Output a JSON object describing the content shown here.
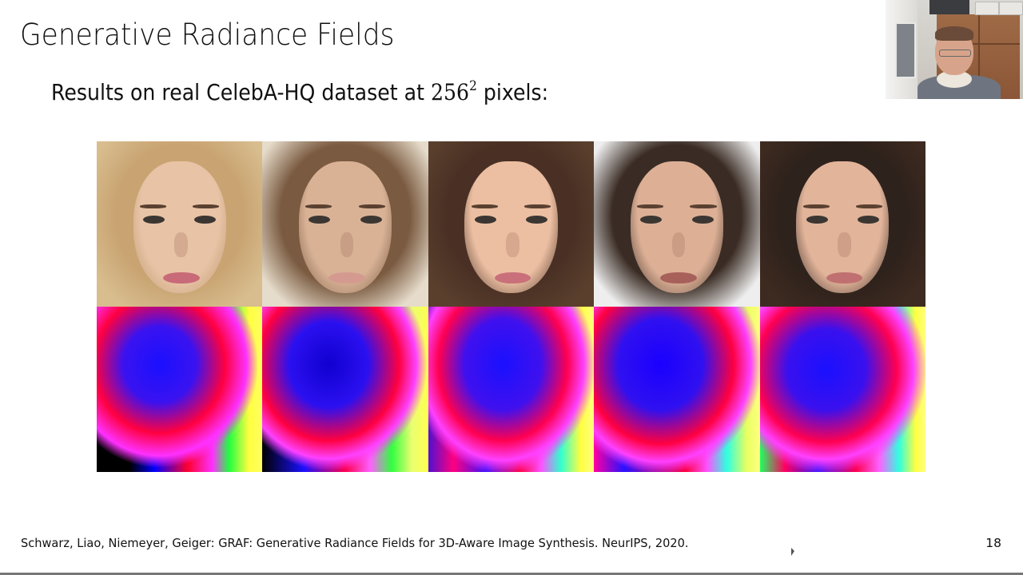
{
  "slide": {
    "title": "Generative Radiance Fields",
    "subtitle_prefix": "Results on real CelebA-HQ dataset at ",
    "subtitle_math_base": "256",
    "subtitle_math_exp": "2",
    "subtitle_suffix": " pixels:",
    "citation": "Schwarz, Liao, Niemeyer, Geiger: GRAF: Generative Radiance Fields for 3D-Aware Image Synthesis. NeurIPS, 2020.",
    "page_number": "18"
  },
  "figure": {
    "rows": [
      {
        "name": "rgb-renderings",
        "description": "Generated face images"
      },
      {
        "name": "normal-maps",
        "description": "Corresponding color-coded surface normal maps"
      }
    ],
    "columns": 5,
    "faces": [
      {
        "hair": "#c9a472",
        "skin": "#e8c3a6",
        "bg": "#d8bd8e",
        "lips": "#c96a78"
      },
      {
        "hair": "#7a5a40",
        "skin": "#d9b296",
        "bg": "#e6dccb",
        "lips": "#d49a90"
      },
      {
        "hair": "#4a3024",
        "skin": "#ecbfa2",
        "bg": "#5a3f2d",
        "lips": "#c9707a"
      },
      {
        "hair": "#3a2c24",
        "skin": "#ddb096",
        "bg": "#eeeeee",
        "lips": "#a8605a"
      },
      {
        "hair": "#2e221c",
        "skin": "#e2b49a",
        "bg": "#3d2a20",
        "lips": "#c07070"
      }
    ],
    "normals": [
      "radial-gradient(ellipse at 38% 35%, #1a10ff 0%, #3a12f0 25%, #ff0040 45%, #ff30ff 60%, transparent 68%), linear-gradient(90deg, #000 0%, #000 20%, #0000ff 35%, #ff0030 55%, #ff30ff 70%, #20ff40 80%, #ffff40 92%, #ffff60 100%)",
      "radial-gradient(ellipse at 40% 35%, #1000d0 0%, #2b10f0 28%, #ff0040 50%, #ff40ff 62%, transparent 70%), linear-gradient(90deg, #000 0%, #1a10ff 25%, #ff0050 50%, #ff60ff 65%, #30ff40 78%, #eaff70 90%, #ffff50 100%)",
      "radial-gradient(ellipse at 45% 35%, #1a10ff 0%, #4010ee 30%, #ff0050 50%, #ff40ff 63%, transparent 72%), linear-gradient(90deg, #5010d0 0%, #ff0080 15%, #3a10ff 35%, #ff0040 55%, #ff50ff 68%, #30ffd0 80%, #ffff40 92%, #ffff80 100%)",
      "radial-gradient(ellipse at 40% 35%, #1a00ff 0%, #3010f0 30%, #ff0040 52%, #ff40ff 64%, transparent 72%), linear-gradient(90deg, #ff00a0 0%, #2a10ff 18%, #ff0040 55%, #ff50ff 68%, #30ffe0 80%, #e8ff60 92%, #ffff80 100%)",
      "radial-gradient(ellipse at 40% 38%, #1a10ff 0%, #3a10ee 28%, #ff0050 50%, #ff40ff 62%, transparent 72%), linear-gradient(90deg, #20ff60 0%, #ff0060 15%, #2a10ff 35%, #ff0050 58%, #ff60ff 72%, #30ffe0 84%, #ffff40 94%, #ffff80 100%)"
    ]
  },
  "webcam": {
    "label": "presenter-webcam"
  }
}
